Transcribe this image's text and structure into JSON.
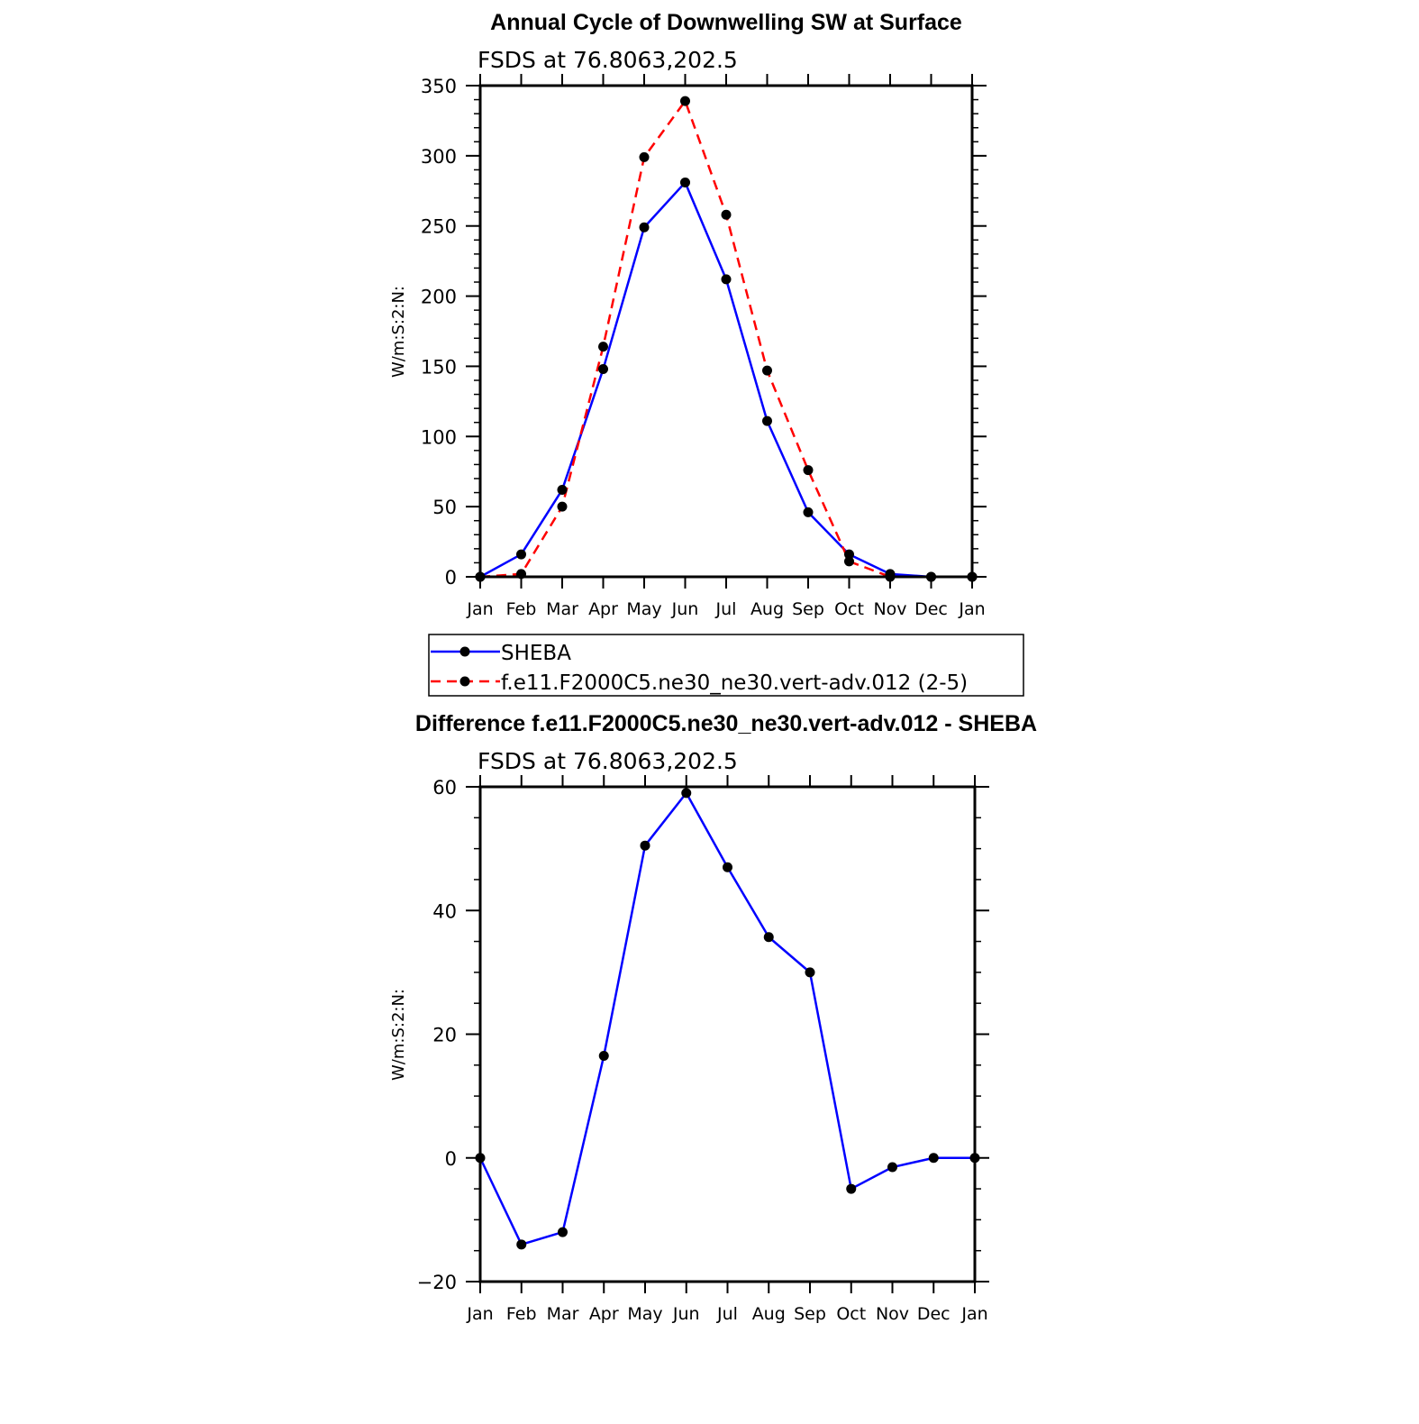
{
  "chart_data": [
    {
      "type": "line",
      "title": "Annual Cycle of Downwelling SW at Surface",
      "subtitle": "FSDS at 76.8063,202.5",
      "ylabel": "W/m:S:2:N:",
      "xlabel": "",
      "categories": [
        "Jan",
        "Feb",
        "Mar",
        "Apr",
        "May",
        "Jun",
        "Jul",
        "Aug",
        "Sep",
        "Oct",
        "Nov",
        "Dec",
        "Jan"
      ],
      "ylim": [
        0,
        350
      ],
      "yticks": [
        "0",
        "50",
        "100",
        "150",
        "200",
        "250",
        "300",
        "350"
      ],
      "legend_placement": "below",
      "series": [
        {
          "name": "SHEBA",
          "color": "#0000ff",
          "dash": "solid",
          "values": [
            0,
            16,
            62,
            148,
            249,
            281,
            212,
            111,
            46,
            16,
            2,
            0,
            0
          ]
        },
        {
          "name": "f.e11.F2000C5.ne30_ne30.vert-adv.012 (2-5)",
          "color": "#ff0000",
          "dash": "dashed",
          "values": [
            0,
            2,
            50,
            164,
            299,
            339,
            258,
            147,
            76,
            11,
            0,
            0,
            0
          ]
        }
      ]
    },
    {
      "type": "line",
      "title": "Difference f.e11.F2000C5.ne30_ne30.vert-adv.012 - SHEBA",
      "subtitle": "FSDS at 76.8063,202.5",
      "ylabel": "W/m:S:2:N:",
      "xlabel": "",
      "categories": [
        "Jan",
        "Feb",
        "Mar",
        "Apr",
        "May",
        "Jun",
        "Jul",
        "Aug",
        "Sep",
        "Oct",
        "Nov",
        "Dec",
        "Jan"
      ],
      "ylim": [
        -20,
        60
      ],
      "yticks": [
        "−20",
        "0",
        "20",
        "40",
        "60"
      ],
      "series": [
        {
          "color": "#0000ff",
          "dash": "solid",
          "values": [
            0,
            -14,
            -12,
            16.5,
            50.5,
            59,
            47,
            35.7,
            30,
            -5,
            -1.5,
            0,
            0
          ]
        }
      ]
    }
  ]
}
